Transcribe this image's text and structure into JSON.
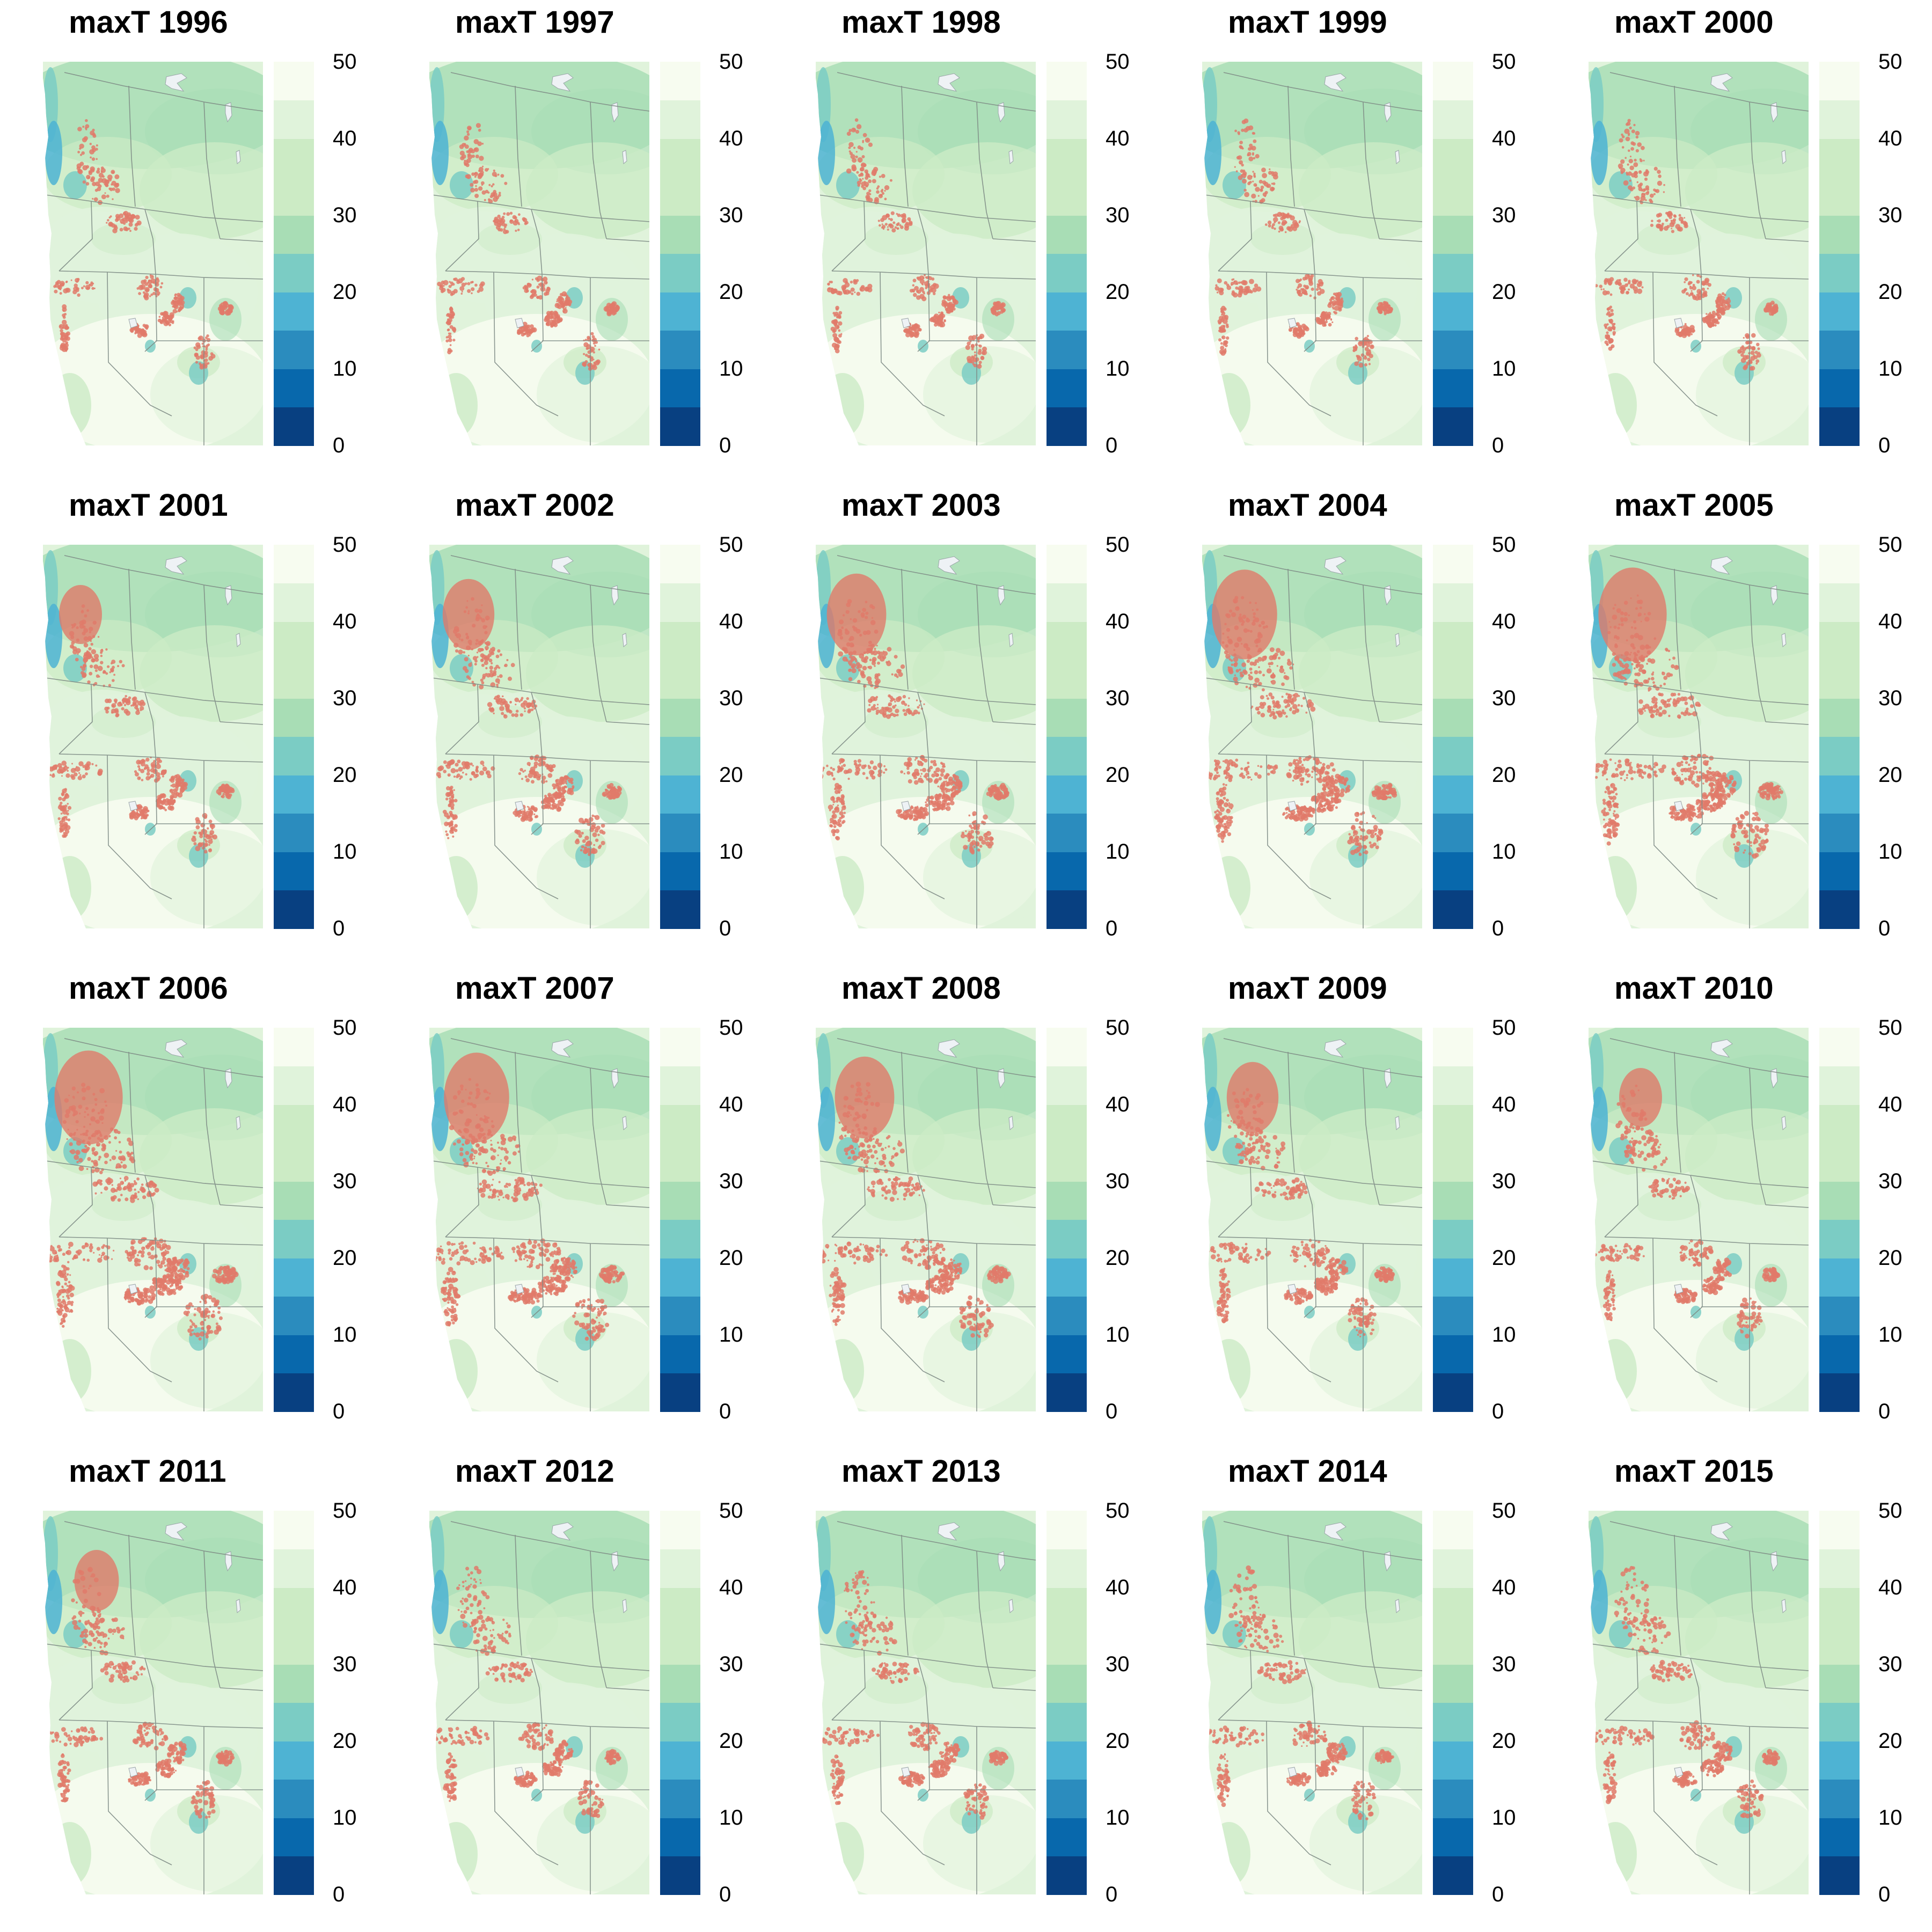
{
  "figure": {
    "panels": [
      {
        "title": "maxT 1996",
        "year": 1996
      },
      {
        "title": "maxT 1997",
        "year": 1997
      },
      {
        "title": "maxT 1998",
        "year": 1998
      },
      {
        "title": "maxT 1999",
        "year": 1999
      },
      {
        "title": "maxT 2000",
        "year": 2000
      },
      {
        "title": "maxT 2001",
        "year": 2001
      },
      {
        "title": "maxT 2002",
        "year": 2002
      },
      {
        "title": "maxT 2003",
        "year": 2003
      },
      {
        "title": "maxT 2004",
        "year": 2004
      },
      {
        "title": "maxT 2005",
        "year": 2005
      },
      {
        "title": "maxT 2006",
        "year": 2006
      },
      {
        "title": "maxT 2007",
        "year": 2007
      },
      {
        "title": "maxT 2008",
        "year": 2008
      },
      {
        "title": "maxT 2009",
        "year": 2009
      },
      {
        "title": "maxT 2010",
        "year": 2010
      },
      {
        "title": "maxT 2011",
        "year": 2011
      },
      {
        "title": "maxT 2012",
        "year": 2012
      },
      {
        "title": "maxT 2013",
        "year": 2013
      },
      {
        "title": "maxT 2014",
        "year": 2014
      },
      {
        "title": "maxT 2015",
        "year": 2015
      }
    ],
    "legend": {
      "ticks": [
        "50",
        "40",
        "30",
        "20",
        "10",
        "0"
      ],
      "range": [
        0,
        50
      ],
      "bin_width": 5,
      "colors_low_to_high": [
        "#084081",
        "#0868ac",
        "#2b8cbe",
        "#4eb3d3",
        "#7bccc4",
        "#a8ddb5",
        "#ccebc5",
        "#ccebc5",
        "#e0f3db",
        "#f7fcf0"
      ]
    },
    "colors": {
      "overlay": "#e07a6a",
      "boundary": "#7f8c86",
      "water": "#eef2f5"
    }
  }
}
